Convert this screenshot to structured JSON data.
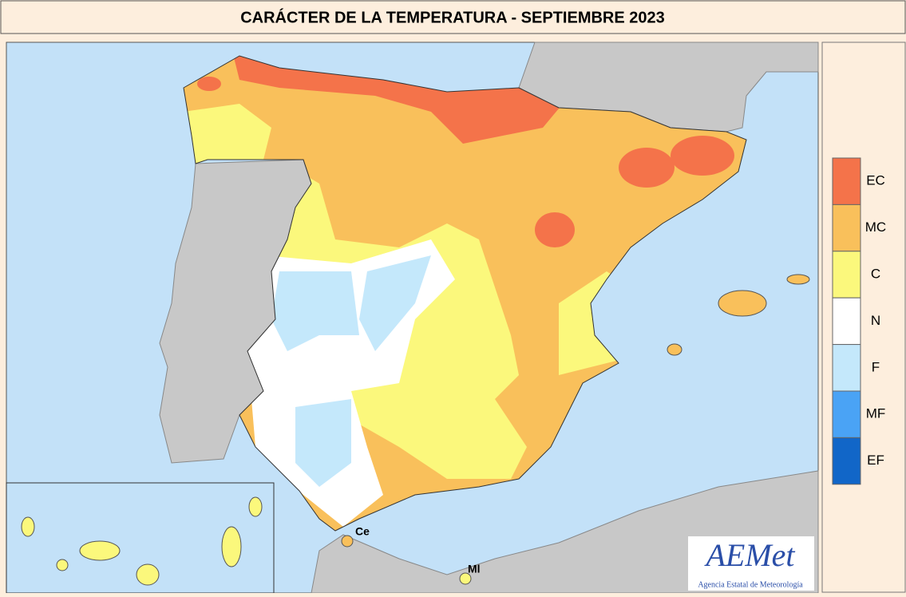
{
  "header": {
    "title": "CARÁCTER DE LA TEMPERATURA - SEPTIEMBRE 2023"
  },
  "legend": [
    {
      "label": "EC",
      "color": "#f4734a"
    },
    {
      "label": "MC",
      "color": "#f9c05b"
    },
    {
      "label": "C",
      "color": "#fbf87c"
    },
    {
      "label": "N",
      "color": "#ffffff"
    },
    {
      "label": "F",
      "color": "#c4e8fb"
    },
    {
      "label": "MF",
      "color": "#4aa3f5"
    },
    {
      "label": "EF",
      "color": "#1166c8"
    }
  ],
  "cities": [
    {
      "label": "Ce",
      "color": "#f9c05b"
    },
    {
      "label": "Ml",
      "color": "#fbf87c"
    }
  ],
  "logo": {
    "name": "AEMet",
    "subtitle": "Agencia Estatal de Meteorología"
  }
}
